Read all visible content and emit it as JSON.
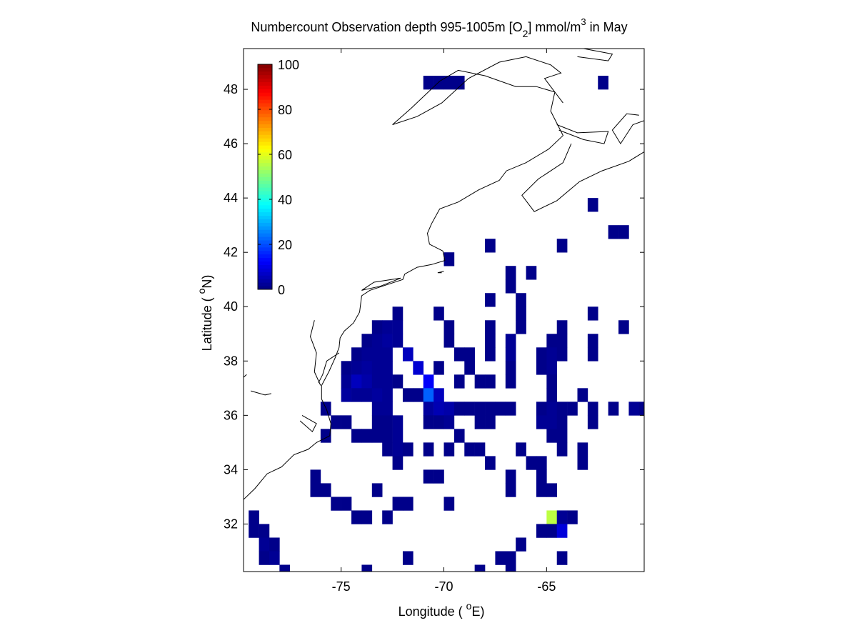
{
  "chart_data": {
    "type": "heatmap",
    "title": "Numbercount Observation depth 995-1005m [O",
    "title_sub": "2",
    "title_mid": "] mmol/m",
    "title_sup": "3",
    "title_end": " in May",
    "xlabel_pre": "Longitude ( ",
    "xlabel_deg": "o",
    "xlabel_post": "E)",
    "ylabel_pre": "Latitude ( ",
    "ylabel_deg": "o",
    "ylabel_post": "N)",
    "xlim": [
      -79.75,
      -60.25
    ],
    "ylim": [
      30.25,
      49.5
    ],
    "xticks": [
      -75,
      -70,
      -65
    ],
    "xtick_labels": [
      "-75",
      "-70",
      "-65"
    ],
    "yticks": [
      32,
      34,
      36,
      38,
      40,
      42,
      44,
      46,
      48
    ],
    "ytick_labels": [
      "32",
      "34",
      "36",
      "38",
      "40",
      "42",
      "44",
      "46",
      "48"
    ],
    "cell_size_deg": 0.5,
    "grid": false,
    "colorbar": {
      "location": "top-left",
      "range": [
        0,
        100
      ],
      "ticks": [
        0,
        20,
        40,
        60,
        80,
        100
      ],
      "tick_labels": [
        "0",
        "20",
        "40",
        "60",
        "80",
        "100"
      ],
      "colormap": "jet"
    },
    "cells": [
      [
        -70.75,
        48.25,
        1
      ],
      [
        -70.25,
        48.25,
        1
      ],
      [
        -69.75,
        48.25,
        1
      ],
      [
        -69.25,
        48.25,
        1
      ],
      [
        -62.25,
        48.25,
        1
      ],
      [
        -62.75,
        43.75,
        1
      ],
      [
        -61.75,
        42.75,
        1
      ],
      [
        -61.25,
        42.75,
        1
      ],
      [
        -67.75,
        42.25,
        1
      ],
      [
        -64.25,
        42.25,
        1
      ],
      [
        -69.75,
        41.75,
        1
      ],
      [
        -66.75,
        41.25,
        1
      ],
      [
        -65.75,
        41.25,
        1
      ],
      [
        -66.75,
        40.75,
        1
      ],
      [
        -67.75,
        40.25,
        1
      ],
      [
        -66.25,
        40.25,
        1
      ],
      [
        -72.25,
        39.75,
        1
      ],
      [
        -70.25,
        39.75,
        1
      ],
      [
        -66.25,
        39.75,
        1
      ],
      [
        -62.75,
        39.75,
        1
      ],
      [
        -73.25,
        39.25,
        1
      ],
      [
        -72.75,
        39.25,
        2
      ],
      [
        -72.25,
        39.25,
        2
      ],
      [
        -69.75,
        39.25,
        1
      ],
      [
        -67.75,
        39.25,
        1
      ],
      [
        -66.25,
        39.25,
        1
      ],
      [
        -64.25,
        39.25,
        1
      ],
      [
        -61.25,
        39.25,
        1
      ],
      [
        -73.75,
        38.75,
        1
      ],
      [
        -73.25,
        38.75,
        2
      ],
      [
        -72.75,
        38.75,
        3
      ],
      [
        -72.25,
        38.75,
        2
      ],
      [
        -69.75,
        38.75,
        1
      ],
      [
        -67.75,
        38.75,
        1
      ],
      [
        -66.75,
        38.75,
        2
      ],
      [
        -64.75,
        38.75,
        1
      ],
      [
        -64.25,
        38.75,
        1
      ],
      [
        -62.75,
        38.75,
        1
      ],
      [
        -74.25,
        38.25,
        1
      ],
      [
        -73.75,
        38.25,
        2
      ],
      [
        -73.25,
        38.25,
        2
      ],
      [
        -72.75,
        38.25,
        2
      ],
      [
        -71.75,
        38.25,
        6
      ],
      [
        -69.25,
        38.25,
        1
      ],
      [
        -68.75,
        38.25,
        1
      ],
      [
        -67.75,
        38.25,
        1
      ],
      [
        -66.75,
        38.25,
        2
      ],
      [
        -65.25,
        38.25,
        1
      ],
      [
        -64.75,
        38.25,
        2
      ],
      [
        -64.25,
        38.25,
        1
      ],
      [
        -62.75,
        38.25,
        1
      ],
      [
        -74.75,
        37.75,
        1
      ],
      [
        -74.25,
        37.75,
        2
      ],
      [
        -73.75,
        37.75,
        3
      ],
      [
        -73.25,
        37.75,
        2
      ],
      [
        -72.75,
        37.75,
        2
      ],
      [
        -71.25,
        37.75,
        8
      ],
      [
        -70.25,
        37.75,
        1
      ],
      [
        -68.75,
        37.75,
        1
      ],
      [
        -66.75,
        37.75,
        1
      ],
      [
        -65.25,
        37.75,
        1
      ],
      [
        -64.75,
        37.75,
        2
      ],
      [
        -74.75,
        37.25,
        2
      ],
      [
        -74.25,
        37.25,
        6
      ],
      [
        -73.75,
        37.25,
        4
      ],
      [
        -73.25,
        37.25,
        2
      ],
      [
        -72.75,
        37.25,
        2
      ],
      [
        -72.25,
        37.25,
        1
      ],
      [
        -70.75,
        37.25,
        12
      ],
      [
        -69.25,
        37.25,
        1
      ],
      [
        -68.25,
        37.25,
        1
      ],
      [
        -67.75,
        37.25,
        1
      ],
      [
        -66.75,
        37.25,
        1
      ],
      [
        -64.75,
        37.25,
        1
      ],
      [
        -74.75,
        36.75,
        3
      ],
      [
        -74.25,
        36.75,
        2
      ],
      [
        -73.75,
        36.75,
        2
      ],
      [
        -73.25,
        36.75,
        3
      ],
      [
        -72.75,
        36.75,
        2
      ],
      [
        -71.75,
        36.75,
        1
      ],
      [
        -71.25,
        36.75,
        1
      ],
      [
        -70.75,
        36.75,
        22
      ],
      [
        -70.25,
        36.75,
        6
      ],
      [
        -64.75,
        36.75,
        1
      ],
      [
        -63.25,
        36.75,
        1
      ],
      [
        -75.75,
        36.25,
        1
      ],
      [
        -73.25,
        36.25,
        2
      ],
      [
        -72.75,
        36.25,
        2
      ],
      [
        -70.75,
        36.25,
        3
      ],
      [
        -70.25,
        36.25,
        5
      ],
      [
        -69.75,
        36.25,
        4
      ],
      [
        -69.25,
        36.25,
        1
      ],
      [
        -68.75,
        36.25,
        1
      ],
      [
        -68.25,
        36.25,
        1
      ],
      [
        -67.75,
        36.25,
        1
      ],
      [
        -67.25,
        36.25,
        1
      ],
      [
        -66.75,
        36.25,
        1
      ],
      [
        -65.25,
        36.25,
        1
      ],
      [
        -64.75,
        36.25,
        2
      ],
      [
        -64.25,
        36.25,
        1
      ],
      [
        -63.75,
        36.25,
        1
      ],
      [
        -62.75,
        36.25,
        1
      ],
      [
        -61.75,
        36.25,
        1
      ],
      [
        -60.75,
        36.25,
        2
      ],
      [
        -60.25,
        36.25,
        1
      ],
      [
        -75.25,
        35.75,
        1
      ],
      [
        -74.75,
        35.75,
        1
      ],
      [
        -73.25,
        35.75,
        1
      ],
      [
        -72.75,
        35.75,
        1
      ],
      [
        -72.25,
        35.75,
        2
      ],
      [
        -70.75,
        35.75,
        1
      ],
      [
        -70.25,
        35.75,
        1
      ],
      [
        -69.75,
        35.75,
        2
      ],
      [
        -68.25,
        35.75,
        1
      ],
      [
        -67.75,
        35.75,
        1
      ],
      [
        -65.25,
        35.75,
        2
      ],
      [
        -64.75,
        35.75,
        2
      ],
      [
        -64.25,
        35.75,
        1
      ],
      [
        -62.75,
        35.75,
        1
      ],
      [
        -75.75,
        35.25,
        1
      ],
      [
        -74.25,
        35.25,
        1
      ],
      [
        -73.75,
        35.25,
        1
      ],
      [
        -73.25,
        35.25,
        1
      ],
      [
        -72.75,
        35.25,
        1
      ],
      [
        -72.25,
        35.25,
        2
      ],
      [
        -69.25,
        35.25,
        1
      ],
      [
        -64.75,
        35.25,
        1
      ],
      [
        -64.25,
        35.25,
        1
      ],
      [
        -72.75,
        34.75,
        1
      ],
      [
        -72.25,
        34.75,
        2
      ],
      [
        -71.75,
        34.75,
        1
      ],
      [
        -70.75,
        34.75,
        1
      ],
      [
        -69.75,
        34.75,
        1
      ],
      [
        -68.75,
        34.75,
        1
      ],
      [
        -68.25,
        34.75,
        1
      ],
      [
        -66.25,
        34.75,
        1
      ],
      [
        -64.25,
        34.75,
        1
      ],
      [
        -63.25,
        34.75,
        1
      ],
      [
        -72.25,
        34.25,
        1
      ],
      [
        -67.75,
        34.25,
        1
      ],
      [
        -65.75,
        34.25,
        1
      ],
      [
        -65.25,
        34.25,
        1
      ],
      [
        -63.25,
        34.25,
        1
      ],
      [
        -76.25,
        33.75,
        1
      ],
      [
        -70.75,
        33.75,
        1
      ],
      [
        -70.25,
        33.75,
        1
      ],
      [
        -66.75,
        33.75,
        1
      ],
      [
        -65.25,
        33.75,
        1
      ],
      [
        -76.25,
        33.25,
        1
      ],
      [
        -75.75,
        33.25,
        1
      ],
      [
        -73.25,
        33.25,
        1
      ],
      [
        -66.75,
        33.25,
        1
      ],
      [
        -65.25,
        33.25,
        1
      ],
      [
        -64.75,
        33.25,
        1
      ],
      [
        -75.25,
        32.75,
        1
      ],
      [
        -74.75,
        32.75,
        1
      ],
      [
        -72.25,
        32.75,
        1
      ],
      [
        -71.75,
        32.75,
        1
      ],
      [
        -69.75,
        32.75,
        1
      ],
      [
        -79.25,
        32.25,
        1
      ],
      [
        -74.25,
        32.25,
        1
      ],
      [
        -73.75,
        32.25,
        1
      ],
      [
        -72.75,
        32.25,
        1
      ],
      [
        -64.75,
        32.25,
        56
      ],
      [
        -64.25,
        32.25,
        2
      ],
      [
        -63.75,
        32.25,
        1
      ],
      [
        -79.25,
        31.75,
        1
      ],
      [
        -78.75,
        31.75,
        1
      ],
      [
        -65.25,
        31.75,
        1
      ],
      [
        -64.75,
        31.75,
        1
      ],
      [
        -64.25,
        31.75,
        9
      ],
      [
        -78.75,
        31.25,
        2
      ],
      [
        -78.25,
        31.25,
        1
      ],
      [
        -66.25,
        31.25,
        1
      ],
      [
        -78.75,
        30.75,
        1
      ],
      [
        -78.25,
        30.75,
        2
      ],
      [
        -71.75,
        30.75,
        1
      ],
      [
        -67.25,
        30.75,
        1
      ],
      [
        -66.75,
        30.75,
        1
      ],
      [
        -64.25,
        30.75,
        1
      ],
      [
        -77.75,
        30.25,
        1
      ],
      [
        -73.75,
        30.25,
        1
      ],
      [
        -68.25,
        30.25,
        1
      ],
      [
        -66.75,
        30.25,
        1
      ]
    ]
  },
  "coastlines": [
    [
      [
        -79.75,
        32.9
      ],
      [
        -79.2,
        33.3
      ],
      [
        -78.6,
        33.85
      ],
      [
        -77.9,
        34.1
      ],
      [
        -77.3,
        34.55
      ],
      [
        -76.6,
        34.75
      ],
      [
        -76.2,
        35.0
      ],
      [
        -75.55,
        35.25
      ],
      [
        -75.5,
        35.7
      ],
      [
        -75.7,
        36.2
      ],
      [
        -75.95,
        36.6
      ],
      [
        -75.95,
        37.1
      ],
      [
        -75.6,
        37.6
      ],
      [
        -75.3,
        38.1
      ],
      [
        -75.1,
        38.5
      ],
      [
        -75.05,
        38.85
      ],
      [
        -74.85,
        39.1
      ],
      [
        -74.4,
        39.4
      ],
      [
        -74.1,
        39.8
      ],
      [
        -74.0,
        40.4
      ],
      [
        -73.6,
        40.6
      ],
      [
        -72.8,
        40.8
      ],
      [
        -72.0,
        41.0
      ],
      [
        -71.9,
        41.2
      ],
      [
        -71.3,
        41.45
      ],
      [
        -70.6,
        41.55
      ],
      [
        -69.95,
        41.7
      ],
      [
        -70.05,
        42.05
      ],
      [
        -70.7,
        42.3
      ],
      [
        -70.8,
        42.7
      ],
      [
        -70.6,
        43.05
      ],
      [
        -70.2,
        43.6
      ],
      [
        -69.3,
        43.85
      ],
      [
        -68.3,
        44.3
      ],
      [
        -67.3,
        44.65
      ],
      [
        -66.95,
        45.0
      ],
      [
        -66.0,
        45.3
      ],
      [
        -64.9,
        45.8
      ],
      [
        -64.2,
        46.3
      ],
      [
        -64.8,
        47.2
      ],
      [
        -64.6,
        47.9
      ],
      [
        -65.5,
        48.1
      ],
      [
        -66.5,
        48.1
      ],
      [
        -68.0,
        48.5
      ],
      [
        -69.3,
        48.7
      ],
      [
        -70.2,
        48.3
      ],
      [
        -71.6,
        47.3
      ],
      [
        -72.5,
        46.7
      ],
      [
        -71.3,
        47.0
      ],
      [
        -70.1,
        47.5
      ],
      [
        -68.8,
        48.4
      ],
      [
        -67.3,
        49.0
      ],
      [
        -66.0,
        49.2
      ],
      [
        -64.8,
        48.9
      ],
      [
        -64.3,
        48.6
      ],
      [
        -65.1,
        48.4
      ],
      [
        -64.2,
        47.5
      ]
    ],
    [
      [
        -63.8,
        46.0
      ],
      [
        -64.2,
        45.3
      ],
      [
        -65.4,
        44.7
      ],
      [
        -66.2,
        44.1
      ],
      [
        -65.6,
        43.5
      ],
      [
        -64.5,
        43.9
      ],
      [
        -63.4,
        44.6
      ],
      [
        -62.3,
        45.0
      ],
      [
        -61.0,
        45.35
      ],
      [
        -60.25,
        45.7
      ]
    ],
    [
      [
        -60.25,
        46.85
      ],
      [
        -60.8,
        46.7
      ],
      [
        -61.4,
        46.0
      ],
      [
        -61.8,
        46.5
      ],
      [
        -61.1,
        47.1
      ],
      [
        -60.5,
        47.05
      ]
    ],
    [
      [
        -64.5,
        46.7
      ],
      [
        -63.5,
        46.4
      ],
      [
        -62.0,
        46.45
      ],
      [
        -62.2,
        46.0
      ],
      [
        -63.2,
        46.15
      ],
      [
        -64.4,
        46.5
      ]
    ],
    [
      [
        -63.5,
        49.2
      ],
      [
        -62.0,
        49.05
      ],
      [
        -61.8,
        49.3
      ],
      [
        -63.2,
        49.5
      ]
    ],
    [
      [
        -72.1,
        41.05
      ],
      [
        -73.4,
        40.9
      ],
      [
        -74.0,
        40.6
      ],
      [
        -73.1,
        40.75
      ],
      [
        -72.1,
        41.05
      ]
    ],
    [
      [
        -70.0,
        41.3
      ],
      [
        -70.3,
        41.25
      ],
      [
        -70.1,
        41.25
      ]
    ],
    [
      [
        -76.3,
        39.5
      ],
      [
        -76.5,
        38.9
      ],
      [
        -76.2,
        38.3
      ],
      [
        -76.3,
        37.6
      ],
      [
        -76.0,
        37.1
      ]
    ],
    [
      [
        -75.1,
        38.3
      ],
      [
        -75.7,
        38.0
      ],
      [
        -75.9,
        37.5
      ],
      [
        -76.1,
        37.2
      ]
    ],
    [
      [
        -77.0,
        35.8
      ],
      [
        -76.4,
        35.4
      ],
      [
        -76.2,
        35.7
      ],
      [
        -76.9,
        36.0
      ]
    ],
    [
      [
        -79.4,
        36.9
      ],
      [
        -78.7,
        36.75
      ],
      [
        -78.4,
        36.8
      ]
    ],
    [
      [
        -79.75,
        37.4
      ],
      [
        -79.6,
        37.5
      ]
    ]
  ]
}
